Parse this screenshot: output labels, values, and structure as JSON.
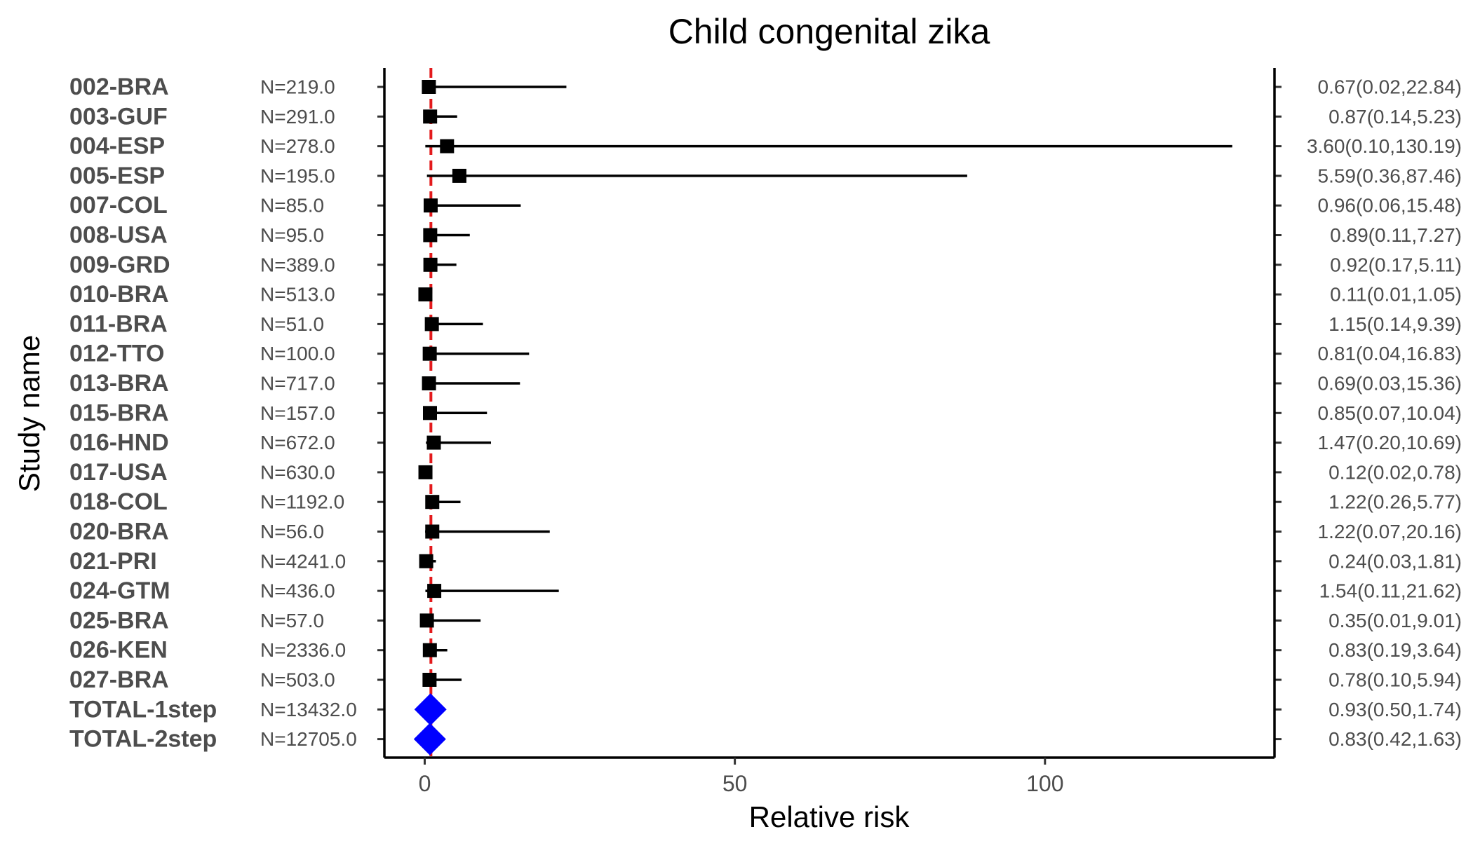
{
  "chart_data": {
    "type": "forest",
    "title": "Child congenital zika",
    "xlabel": "Relative risk",
    "ylabel": "Study name",
    "xlim": [
      -6.5,
      137
    ],
    "xticks": [
      0,
      50,
      100
    ],
    "reference_line": {
      "value": 1,
      "color": "#e31a1c",
      "style": "dashed"
    },
    "point_color": "#000000",
    "summary_color": "#0000ff",
    "rows": [
      {
        "study": "002-BRA",
        "n": "N=219.0",
        "est": 0.67,
        "lo": 0.02,
        "hi": 22.84,
        "label": "0.67(0.02,22.84)",
        "summary": false
      },
      {
        "study": "003-GUF",
        "n": "N=291.0",
        "est": 0.87,
        "lo": 0.14,
        "hi": 5.23,
        "label": "0.87(0.14,5.23)",
        "summary": false
      },
      {
        "study": "004-ESP",
        "n": "N=278.0",
        "est": 3.6,
        "lo": 0.1,
        "hi": 130.19,
        "label": "3.60(0.10,130.19)",
        "summary": false
      },
      {
        "study": "005-ESP",
        "n": "N=195.0",
        "est": 5.59,
        "lo": 0.36,
        "hi": 87.46,
        "label": "5.59(0.36,87.46)",
        "summary": false
      },
      {
        "study": "007-COL",
        "n": "N=85.0",
        "est": 0.96,
        "lo": 0.06,
        "hi": 15.48,
        "label": "0.96(0.06,15.48)",
        "summary": false
      },
      {
        "study": "008-USA",
        "n": "N=95.0",
        "est": 0.89,
        "lo": 0.11,
        "hi": 7.27,
        "label": "0.89(0.11,7.27)",
        "summary": false
      },
      {
        "study": "009-GRD",
        "n": "N=389.0",
        "est": 0.92,
        "lo": 0.17,
        "hi": 5.11,
        "label": "0.92(0.17,5.11)",
        "summary": false
      },
      {
        "study": "010-BRA",
        "n": "N=513.0",
        "est": 0.11,
        "lo": 0.01,
        "hi": 1.05,
        "label": "0.11(0.01,1.05)",
        "summary": false
      },
      {
        "study": "011-BRA",
        "n": "N=51.0",
        "est": 1.15,
        "lo": 0.14,
        "hi": 9.39,
        "label": "1.15(0.14,9.39)",
        "summary": false
      },
      {
        "study": "012-TTO",
        "n": "N=100.0",
        "est": 0.81,
        "lo": 0.04,
        "hi": 16.83,
        "label": "0.81(0.04,16.83)",
        "summary": false
      },
      {
        "study": "013-BRA",
        "n": "N=717.0",
        "est": 0.69,
        "lo": 0.03,
        "hi": 15.36,
        "label": "0.69(0.03,15.36)",
        "summary": false
      },
      {
        "study": "015-BRA",
        "n": "N=157.0",
        "est": 0.85,
        "lo": 0.07,
        "hi": 10.04,
        "label": "0.85(0.07,10.04)",
        "summary": false
      },
      {
        "study": "016-HND",
        "n": "N=672.0",
        "est": 1.47,
        "lo": 0.2,
        "hi": 10.69,
        "label": "1.47(0.20,10.69)",
        "summary": false
      },
      {
        "study": "017-USA",
        "n": "N=630.0",
        "est": 0.12,
        "lo": 0.02,
        "hi": 0.78,
        "label": "0.12(0.02,0.78)",
        "summary": false
      },
      {
        "study": "018-COL",
        "n": "N=1192.0",
        "est": 1.22,
        "lo": 0.26,
        "hi": 5.77,
        "label": "1.22(0.26,5.77)",
        "summary": false
      },
      {
        "study": "020-BRA",
        "n": "N=56.0",
        "est": 1.22,
        "lo": 0.07,
        "hi": 20.16,
        "label": "1.22(0.07,20.16)",
        "summary": false
      },
      {
        "study": "021-PRI",
        "n": "N=4241.0",
        "est": 0.24,
        "lo": 0.03,
        "hi": 1.81,
        "label": "0.24(0.03,1.81)",
        "summary": false
      },
      {
        "study": "024-GTM",
        "n": "N=436.0",
        "est": 1.54,
        "lo": 0.11,
        "hi": 21.62,
        "label": "1.54(0.11,21.62)",
        "summary": false
      },
      {
        "study": "025-BRA",
        "n": "N=57.0",
        "est": 0.35,
        "lo": 0.01,
        "hi": 9.01,
        "label": "0.35(0.01,9.01)",
        "summary": false
      },
      {
        "study": "026-KEN",
        "n": "N=2336.0",
        "est": 0.83,
        "lo": 0.19,
        "hi": 3.64,
        "label": "0.83(0.19,3.64)",
        "summary": false
      },
      {
        "study": "027-BRA",
        "n": "N=503.0",
        "est": 0.78,
        "lo": 0.1,
        "hi": 5.94,
        "label": "0.78(0.10,5.94)",
        "summary": false
      },
      {
        "study": "TOTAL-1step",
        "n": "N=13432.0",
        "est": 0.93,
        "lo": 0.5,
        "hi": 1.74,
        "label": "0.93(0.50,1.74)",
        "summary": true
      },
      {
        "study": "TOTAL-2step",
        "n": "N=12705.0",
        "est": 0.83,
        "lo": 0.42,
        "hi": 1.63,
        "label": "0.83(0.42,1.63)",
        "summary": true
      }
    ]
  }
}
